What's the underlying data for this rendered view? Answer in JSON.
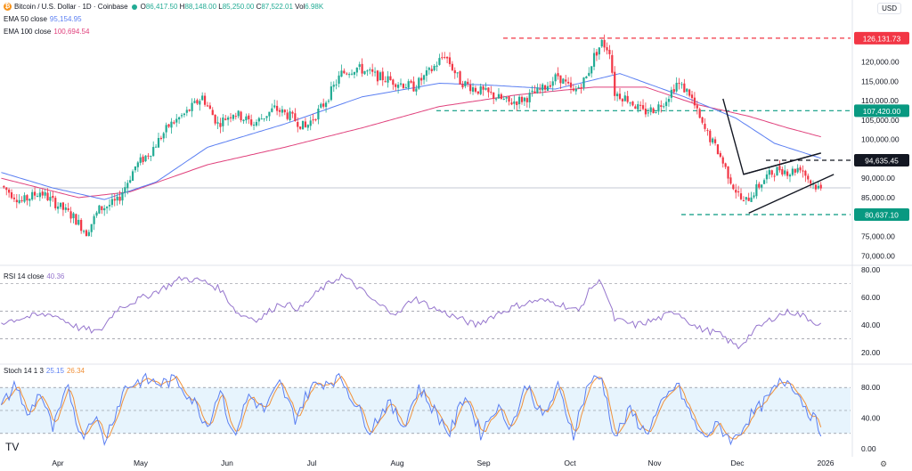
{
  "header": {
    "symbol": "Bitcoin / U.S. Dollar · 1D · Coinbase",
    "ohlc": [
      {
        "k": "O",
        "v": "86,417.50"
      },
      {
        "k": "H",
        "v": "88,148.00"
      },
      {
        "k": "L",
        "v": "85,250.00"
      },
      {
        "k": "C",
        "v": "87,522.01"
      }
    ],
    "vol_label": "Vol",
    "vol_value": "6.98K",
    "ema50_label": "EMA 50 close",
    "ema50_value": "95,154.95",
    "ema100_label": "EMA 100 close",
    "ema100_value": "100,694.54",
    "currency": "USD"
  },
  "colors": {
    "up": "#22ab94",
    "down": "#f23645",
    "ema50": "#5b7ff2",
    "ema100": "#e0417c",
    "rsi": "#9575cd",
    "stoch_k": "#5b7ff2",
    "stoch_d": "#f0913a",
    "teal": "#089981"
  },
  "chart_data": [
    {
      "type": "candlestick",
      "title": "Bitcoin / U.S. Dollar · 1D · Coinbase",
      "x_ticks": [
        "Apr",
        "May",
        "Jun",
        "Jul",
        "Aug",
        "Sep",
        "Oct",
        "Nov",
        "Dec",
        "2026"
      ],
      "y_ticks": [
        "120,000.00",
        "115,000.00",
        "110,000.00",
        "105,000.00",
        "100,000.00",
        "90,000.00",
        "85,000.00",
        "75,000.00",
        "70,000.00"
      ],
      "ylim": [
        68000,
        130000
      ],
      "price_labels": [
        {
          "text": "126,131.73",
          "value": 126131.73,
          "color": "#f23645"
        },
        {
          "text": "107,420.00",
          "value": 107420,
          "color": "#089981"
        },
        {
          "text": "94,635.45",
          "value": 94635.45,
          "color": "#131722"
        },
        {
          "text": "80,637.10",
          "value": 80637.1,
          "color": "#089981"
        }
      ],
      "anchors": [
        [
          0,
          88000
        ],
        [
          8,
          84000
        ],
        [
          15,
          86500
        ],
        [
          22,
          83000
        ],
        [
          28,
          80000
        ],
        [
          33,
          76000
        ],
        [
          38,
          82000
        ],
        [
          45,
          84000
        ],
        [
          52,
          93000
        ],
        [
          58,
          97000
        ],
        [
          65,
          103500
        ],
        [
          72,
          107000
        ],
        [
          78,
          111000
        ],
        [
          84,
          104000
        ],
        [
          90,
          107000
        ],
        [
          98,
          104000
        ],
        [
          106,
          108000
        ],
        [
          112,
          106000
        ],
        [
          118,
          103000
        ],
        [
          125,
          109000
        ],
        [
          132,
          117000
        ],
        [
          138,
          118500
        ],
        [
          145,
          116500
        ],
        [
          152,
          115000
        ],
        [
          160,
          113500
        ],
        [
          167,
          118000
        ],
        [
          172,
          122000
        ],
        [
          178,
          115000
        ],
        [
          184,
          113000
        ],
        [
          190,
          111500
        ],
        [
          197,
          109500
        ],
        [
          203,
          110500
        ],
        [
          210,
          113000
        ],
        [
          216,
          116500
        ],
        [
          222,
          112000
        ],
        [
          227,
          116000
        ],
        [
          230,
          121500
        ],
        [
          233,
          125000
        ],
        [
          236,
          123000
        ],
        [
          238,
          112000
        ],
        [
          243,
          110500
        ],
        [
          249,
          107000
        ],
        [
          254,
          108000
        ],
        [
          258,
          110500
        ],
        [
          262,
          114500
        ],
        [
          267,
          112000
        ],
        [
          272,
          103500
        ],
        [
          278,
          97000
        ],
        [
          284,
          88000
        ],
        [
          288,
          83500
        ],
        [
          292,
          86500
        ],
        [
          297,
          90500
        ],
        [
          302,
          92500
        ],
        [
          306,
          91500
        ],
        [
          310,
          93000
        ],
        [
          314,
          89000
        ],
        [
          318,
          87000
        ]
      ],
      "ema50_anchors": [
        [
          0,
          91500
        ],
        [
          20,
          87500
        ],
        [
          40,
          84500
        ],
        [
          60,
          89000
        ],
        [
          80,
          98000
        ],
        [
          110,
          104000
        ],
        [
          140,
          111000
        ],
        [
          170,
          114500
        ],
        [
          190,
          114000
        ],
        [
          215,
          113000
        ],
        [
          240,
          117000
        ],
        [
          265,
          111000
        ],
        [
          285,
          105500
        ],
        [
          300,
          99000
        ],
        [
          318,
          95150
        ]
      ],
      "ema100_anchors": [
        [
          0,
          90000
        ],
        [
          30,
          85000
        ],
        [
          50,
          86500
        ],
        [
          80,
          93500
        ],
        [
          110,
          98000
        ],
        [
          140,
          103000
        ],
        [
          170,
          108500
        ],
        [
          200,
          111500
        ],
        [
          230,
          113500
        ],
        [
          250,
          113500
        ],
        [
          270,
          109000
        ],
        [
          290,
          106000
        ],
        [
          305,
          103000
        ],
        [
          318,
          100700
        ]
      ],
      "annotations": [
        {
          "type": "triangle-pattern",
          "points": [
            [
              280,
              110500
            ],
            [
              288,
              91000
            ],
            [
              318,
              96500
            ]
          ]
        },
        {
          "type": "trendline",
          "from": [
            290,
            81000
          ],
          "to": [
            323,
            91000
          ]
        },
        {
          "type": "trendline",
          "from": [
            288,
            91000
          ],
          "to": [
            318,
            96500
          ]
        }
      ]
    },
    {
      "type": "line",
      "title": "RSI 14 close",
      "value_label": "40.36",
      "y_ticks": [
        "80.00",
        "60.00",
        "40.00",
        "20.00"
      ],
      "ylim": [
        15,
        82
      ],
      "levels": [
        70,
        50,
        30
      ],
      "anchors": [
        [
          0,
          42
        ],
        [
          10,
          46
        ],
        [
          20,
          48
        ],
        [
          30,
          38
        ],
        [
          38,
          35
        ],
        [
          45,
          52
        ],
        [
          55,
          60
        ],
        [
          62,
          66
        ],
        [
          70,
          74
        ],
        [
          78,
          72
        ],
        [
          85,
          66
        ],
        [
          92,
          48
        ],
        [
          100,
          44
        ],
        [
          108,
          56
        ],
        [
          116,
          52
        ],
        [
          124,
          66
        ],
        [
          132,
          76
        ],
        [
          138,
          68
        ],
        [
          146,
          55
        ],
        [
          154,
          48
        ],
        [
          160,
          60
        ],
        [
          168,
          52
        ],
        [
          176,
          46
        ],
        [
          184,
          40
        ],
        [
          192,
          48
        ],
        [
          200,
          54
        ],
        [
          208,
          58
        ],
        [
          216,
          56
        ],
        [
          224,
          50
        ],
        [
          229,
          68
        ],
        [
          233,
          72
        ],
        [
          238,
          44
        ],
        [
          246,
          40
        ],
        [
          254,
          44
        ],
        [
          262,
          50
        ],
        [
          270,
          38
        ],
        [
          278,
          34
        ],
        [
          286,
          24
        ],
        [
          292,
          36
        ],
        [
          300,
          46
        ],
        [
          306,
          50
        ],
        [
          312,
          46
        ],
        [
          318,
          40
        ]
      ]
    },
    {
      "type": "line",
      "title": "Stoch 14 1 3",
      "k_value": "25.15",
      "d_value": "26.34",
      "y_ticks": [
        "80.00",
        "40.00",
        "0.00"
      ],
      "ylim": [
        0,
        100
      ],
      "levels": [
        80,
        50,
        20
      ],
      "k_anchors": [
        [
          0,
          55
        ],
        [
          6,
          85
        ],
        [
          10,
          40
        ],
        [
          15,
          75
        ],
        [
          20,
          25
        ],
        [
          26,
          80
        ],
        [
          31,
          15
        ],
        [
          36,
          45
        ],
        [
          40,
          10
        ],
        [
          48,
          80
        ],
        [
          55,
          90
        ],
        [
          62,
          85
        ],
        [
          68,
          90
        ],
        [
          75,
          60
        ],
        [
          80,
          30
        ],
        [
          85,
          80
        ],
        [
          90,
          15
        ],
        [
          96,
          70
        ],
        [
          102,
          50
        ],
        [
          108,
          85
        ],
        [
          114,
          40
        ],
        [
          120,
          80
        ],
        [
          126,
          88
        ],
        [
          132,
          92
        ],
        [
          138,
          55
        ],
        [
          143,
          25
        ],
        [
          150,
          60
        ],
        [
          156,
          30
        ],
        [
          162,
          80
        ],
        [
          168,
          50
        ],
        [
          174,
          20
        ],
        [
          180,
          72
        ],
        [
          186,
          20
        ],
        [
          192,
          55
        ],
        [
          198,
          30
        ],
        [
          204,
          85
        ],
        [
          210,
          40
        ],
        [
          216,
          80
        ],
        [
          222,
          20
        ],
        [
          228,
          88
        ],
        [
          233,
          92
        ],
        [
          238,
          15
        ],
        [
          244,
          50
        ],
        [
          250,
          20
        ],
        [
          256,
          55
        ],
        [
          262,
          85
        ],
        [
          268,
          40
        ],
        [
          272,
          15
        ],
        [
          278,
          30
        ],
        [
          284,
          10
        ],
        [
          290,
          40
        ],
        [
          296,
          60
        ],
        [
          302,
          85
        ],
        [
          306,
          90
        ],
        [
          312,
          55
        ],
        [
          318,
          25
        ]
      ]
    }
  ]
}
